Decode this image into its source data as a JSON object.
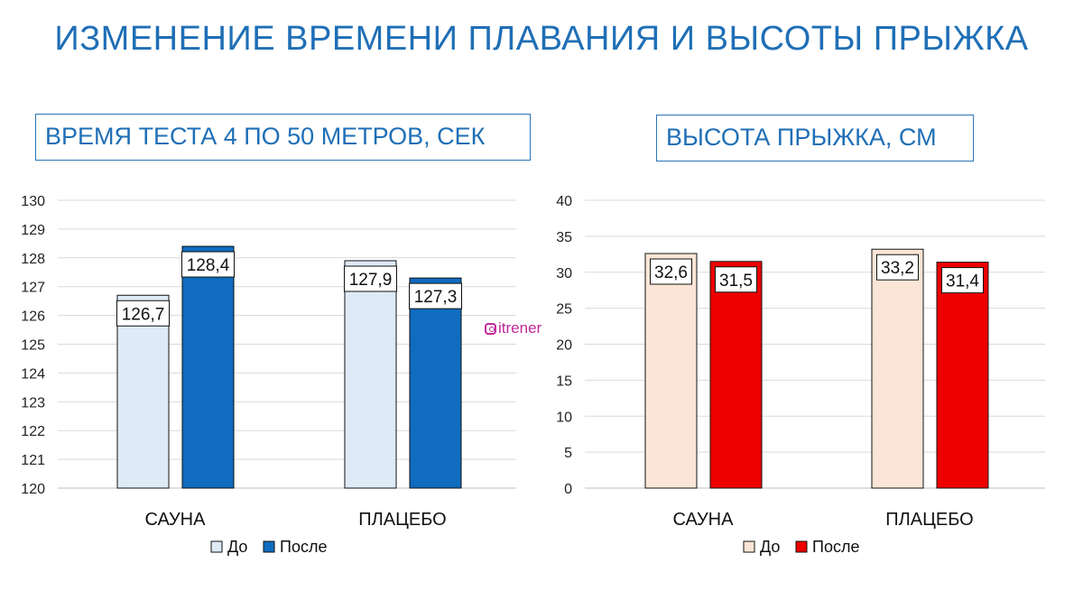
{
  "main_title": "ИЗМЕНЕНИЕ ВРЕМЕНИ ПЛАВАНИЯ И ВЫСОТЫ ПРЫЖКА",
  "watermark": "itrener",
  "watermark_icon": "instagram-icon",
  "chart_data": [
    {
      "type": "bar",
      "title": "ВРЕМЯ ТЕСТА 4 ПО 50 МЕТРОВ, СЕК",
      "categories": [
        "САУНА",
        "ПЛАЦЕБО"
      ],
      "series": [
        {
          "name": "До",
          "values": [
            126.7,
            127.9
          ],
          "labels": [
            "126,7",
            "127,9"
          ],
          "color": "#deeaf6"
        },
        {
          "name": "После",
          "values": [
            128.4,
            127.3
          ],
          "labels": [
            "128,4",
            "127,3"
          ],
          "color": "#0f6cbf"
        }
      ],
      "ylim": [
        120,
        130
      ],
      "yticks": [
        "120",
        "121",
        "122",
        "123",
        "124",
        "125",
        "126",
        "127",
        "128",
        "129",
        "130"
      ],
      "grid": true,
      "legend": "bottom"
    },
    {
      "type": "bar",
      "title": "ВЫСОТА ПРЫЖКА, СМ",
      "categories": [
        "САУНА",
        "ПЛАЦЕБО"
      ],
      "series": [
        {
          "name": "До",
          "values": [
            32.6,
            33.2
          ],
          "labels": [
            "32,6",
            "33,2"
          ],
          "color": "#fbe5d6"
        },
        {
          "name": "После",
          "values": [
            31.5,
            31.4
          ],
          "labels": [
            "31,5",
            "31,4"
          ],
          "color": "#ee0000"
        }
      ],
      "ylim": [
        0,
        40
      ],
      "yticks": [
        "0",
        "5",
        "10",
        "15",
        "20",
        "25",
        "30",
        "35",
        "40"
      ],
      "grid": true,
      "legend": "bottom"
    }
  ]
}
